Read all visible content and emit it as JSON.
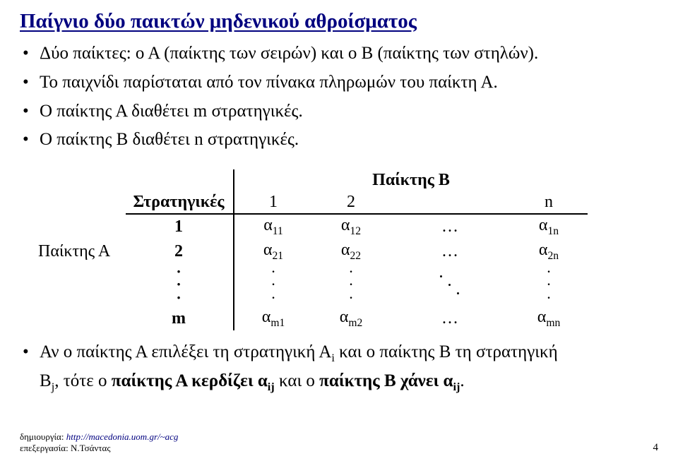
{
  "title": "Παίγνιο δύο παικτών μηδενικού αθροίσματος",
  "bullets_top": [
    "Δύο παίκτες: ο Α (παίκτης των σειρών) και ο Β (παίκτης των στηλών).",
    "Το παιχνίδι παρίσταται από τον πίνακα πληρωμών του παίκτη Α.",
    "Ο παίκτης Α διαθέτει m στρατηγικές.",
    "Ο παίκτης Β διαθέτει n στρατηγικές."
  ],
  "table": {
    "player_b_label": "Παίκτης Β",
    "player_a_label": "Παίκτης Α",
    "strategies_label": "Στρατηγικές",
    "col_headers": [
      "1",
      "2",
      "",
      "n"
    ],
    "rows": [
      {
        "label": "1",
        "cells": [
          "α|11",
          "α|12",
          "…",
          "α|1n"
        ]
      },
      {
        "label": "2",
        "cells": [
          "α|21",
          "α|22",
          "…",
          "α|2n"
        ]
      },
      {
        "label": "m",
        "cells": [
          "α|m1",
          "α|m2",
          "…",
          "α|mn"
        ]
      }
    ]
  },
  "bottom": {
    "line1_pre": "Αν ο παίκτης Α επιλέξει τη στρατηγική Α",
    "line1_sub1": "i",
    "line1_mid": " και ο παίκτης Β τη στρατηγική",
    "line2_B": "Β",
    "line2_subj": "j",
    "line2_mid1": ", τότε ο ",
    "line2_bold1": "παίκτης Α κερδίζει α",
    "line2_bold1_sub": "ij",
    "line2_mid2": " και ο ",
    "line2_bold2": "παίκτης Β χάνει α",
    "line2_bold2_sub": "ij",
    "line2_end": "."
  },
  "footer": {
    "l1_label": "δημιουργία: ",
    "l1_link": "http://macedonia.uom.gr/~acg",
    "l2": "επεξεργασία: Ν.Τσάντας"
  },
  "page_number": "4"
}
